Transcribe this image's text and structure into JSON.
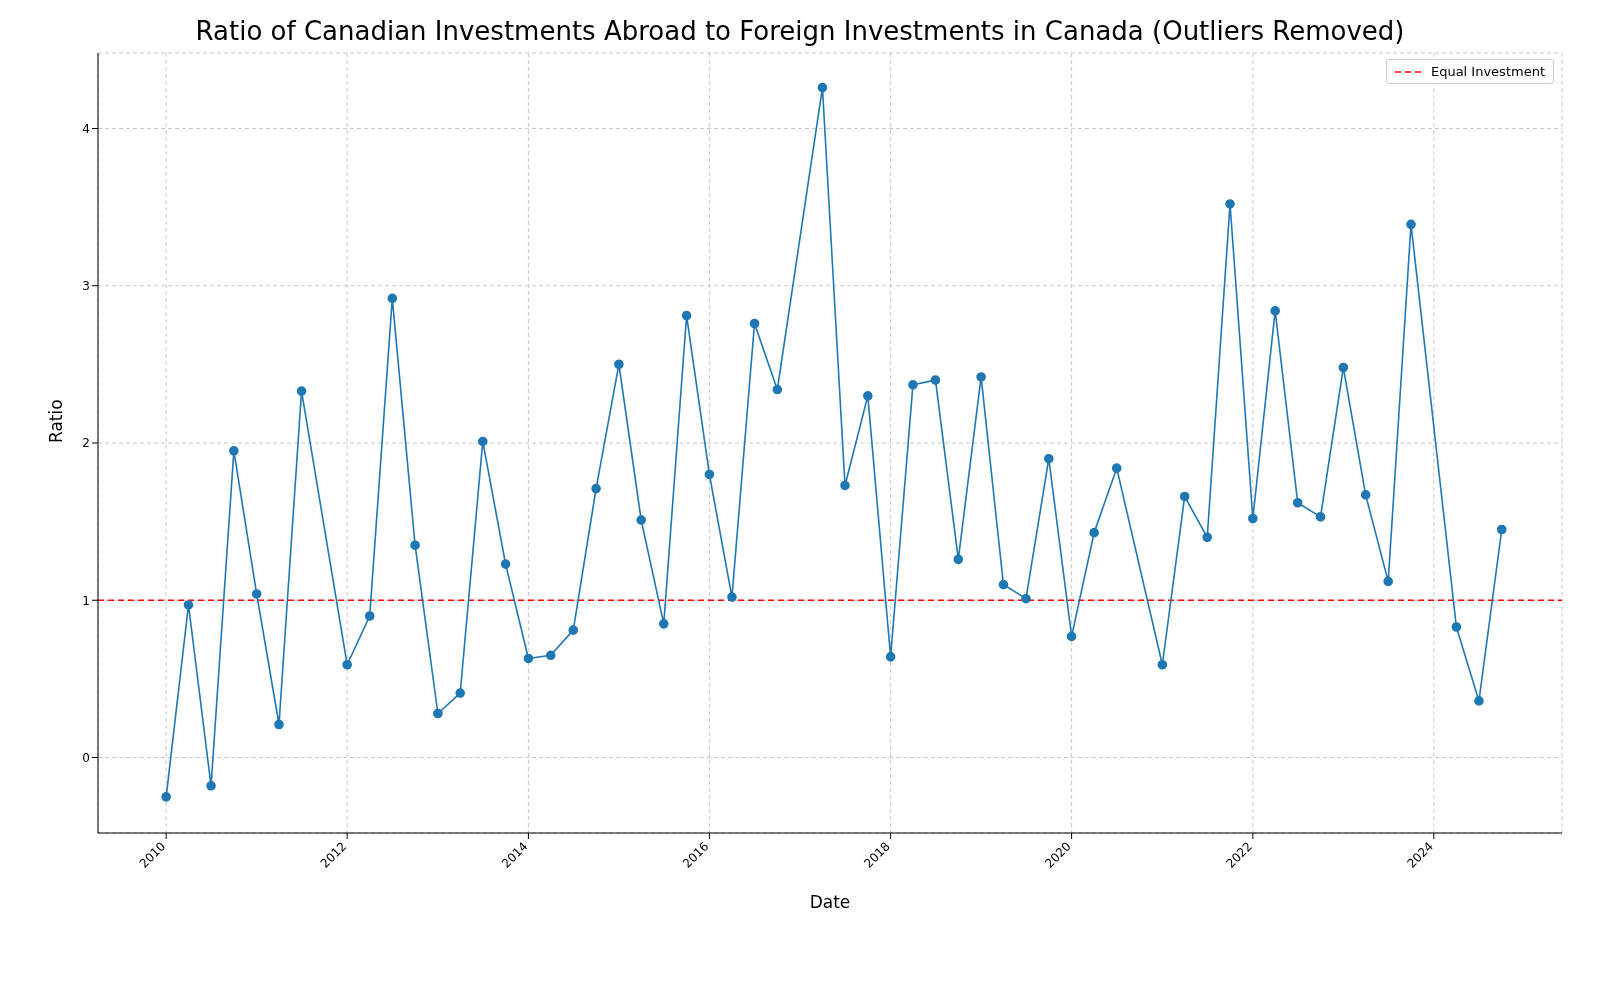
{
  "chart_data": {
    "type": "line",
    "title": "Ratio of Canadian Investments Abroad to Foreign Investments in Canada (Outliers Removed)",
    "xlabel": "Date",
    "ylabel": "Ratio",
    "x": [
      "2010-01",
      "2010-04",
      "2010-07",
      "2010-10",
      "2011-01",
      "2011-04",
      "2011-07",
      "2012-01",
      "2012-04",
      "2012-07",
      "2012-10",
      "2013-01",
      "2013-04",
      "2013-07",
      "2013-10",
      "2014-01",
      "2014-04",
      "2014-07",
      "2014-10",
      "2015-01",
      "2015-04",
      "2015-07",
      "2015-10",
      "2016-01",
      "2016-04",
      "2016-07",
      "2016-10",
      "2017-04",
      "2017-07",
      "2017-10",
      "2018-01",
      "2018-04",
      "2018-07",
      "2018-10",
      "2019-01",
      "2019-04",
      "2019-07",
      "2019-10",
      "2020-01",
      "2020-04",
      "2020-07",
      "2021-01",
      "2021-04",
      "2021-07",
      "2021-10",
      "2022-01",
      "2022-04",
      "2022-07",
      "2022-10",
      "2023-01",
      "2023-04",
      "2023-07",
      "2023-10",
      "2024-04",
      "2024-07",
      "2024-10"
    ],
    "series": [
      {
        "color": "#1f77b4",
        "values": [
          -0.25,
          0.97,
          -0.18,
          1.95,
          1.04,
          0.21,
          2.33,
          0.59,
          0.9,
          2.92,
          1.35,
          0.28,
          0.41,
          2.01,
          1.23,
          0.63,
          0.65,
          0.81,
          1.71,
          2.5,
          1.51,
          0.85,
          2.81,
          1.8,
          1.02,
          2.76,
          2.34,
          4.26,
          1.73,
          2.3,
          0.64,
          2.37,
          2.4,
          1.26,
          2.42,
          1.1,
          1.01,
          1.9,
          0.77,
          1.43,
          1.84,
          0.59,
          1.66,
          1.4,
          3.52,
          1.52,
          2.84,
          1.62,
          1.53,
          2.48,
          1.67,
          1.12,
          3.39,
          0.83,
          0.36,
          1.45
        ]
      }
    ],
    "xlim": [
      "2009-04",
      "2025-06"
    ],
    "xticks": [
      "2010",
      "2012",
      "2014",
      "2016",
      "2018",
      "2020",
      "2022",
      "2024"
    ],
    "ylim": [
      -0.48,
      4.48
    ],
    "yticks": [
      0,
      1,
      2,
      3,
      4
    ],
    "ref_lines": [
      {
        "axis": "y",
        "value": 1,
        "label": "Equal Investment",
        "color": "#ff0000",
        "line_style": "dashed"
      }
    ],
    "grid": true,
    "legend": "top right",
    "marker": "circle",
    "line_style": "solid"
  }
}
